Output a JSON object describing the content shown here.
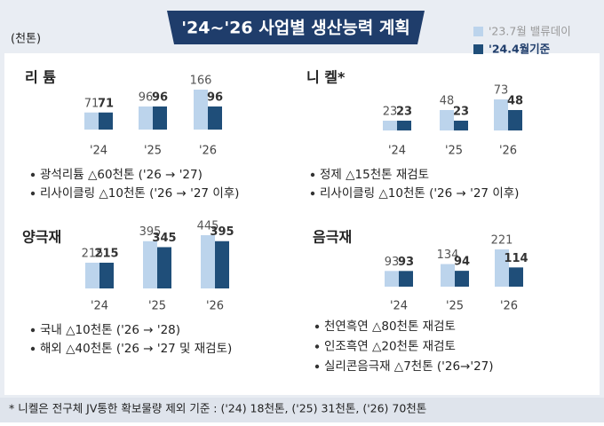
{
  "title": "'24~'26 사업별 생산능력 계획",
  "unit": "(천톤)",
  "legend": [
    {
      "name": "'23.7월 밸류데이",
      "color": "#bcd4ec"
    },
    {
      "name": "'24.4월기준",
      "color": "#1f4e79"
    }
  ],
  "chart_data": [
    {
      "type": "bar",
      "title": "리 튬",
      "categories": [
        "'24",
        "'25",
        "'26"
      ],
      "series": [
        {
          "color": "#bcd4ec",
          "values": [
            71,
            96,
            166
          ]
        },
        {
          "color": "#1f4e79",
          "values": [
            71,
            96,
            96
          ]
        }
      ],
      "notes": [
        "광석리튬 △60천톤 ('26 → '27)",
        "리사이클링 △10천톤 ('26 → '27 이후)"
      ]
    },
    {
      "type": "bar",
      "title": "니 켈*",
      "categories": [
        "'24",
        "'25",
        "'26"
      ],
      "series": [
        {
          "color": "#bcd4ec",
          "values": [
            23,
            48,
            73
          ]
        },
        {
          "color": "#1f4e79",
          "values": [
            23,
            23,
            48
          ]
        }
      ],
      "notes": [
        "정제 △15천톤 재검토",
        "리사이클링 △10천톤 ('26 → '27 이후)"
      ]
    },
    {
      "type": "bar",
      "title": "양극재",
      "categories": [
        "'24",
        "'25",
        "'26"
      ],
      "series": [
        {
          "color": "#bcd4ec",
          "values": [
            215,
            395,
            445
          ]
        },
        {
          "color": "#1f4e79",
          "values": [
            215,
            345,
            395
          ]
        }
      ],
      "notes": [
        "국내 △10천톤 ('26 → '28)",
        "해외 △40천톤 ('26 → '27 및 재검토)"
      ]
    },
    {
      "type": "bar",
      "title": "음극재",
      "categories": [
        "'24",
        "'25",
        "'26"
      ],
      "series": [
        {
          "color": "#bcd4ec",
          "values": [
            93,
            134,
            221
          ]
        },
        {
          "color": "#1f4e79",
          "values": [
            93,
            94,
            114
          ]
        }
      ],
      "notes": [
        "천연흑연 △80천톤 재검토",
        "인조흑연 △20천톤 재검토",
        "실리콘음극재 △7천톤 ('26→'27)"
      ]
    }
  ],
  "footnote": "* 니켈은 전구체 JV통한 확보물량 제외 기준 : ('24) 18천톤, ('25) 31천톤, ('26) 70천톤"
}
